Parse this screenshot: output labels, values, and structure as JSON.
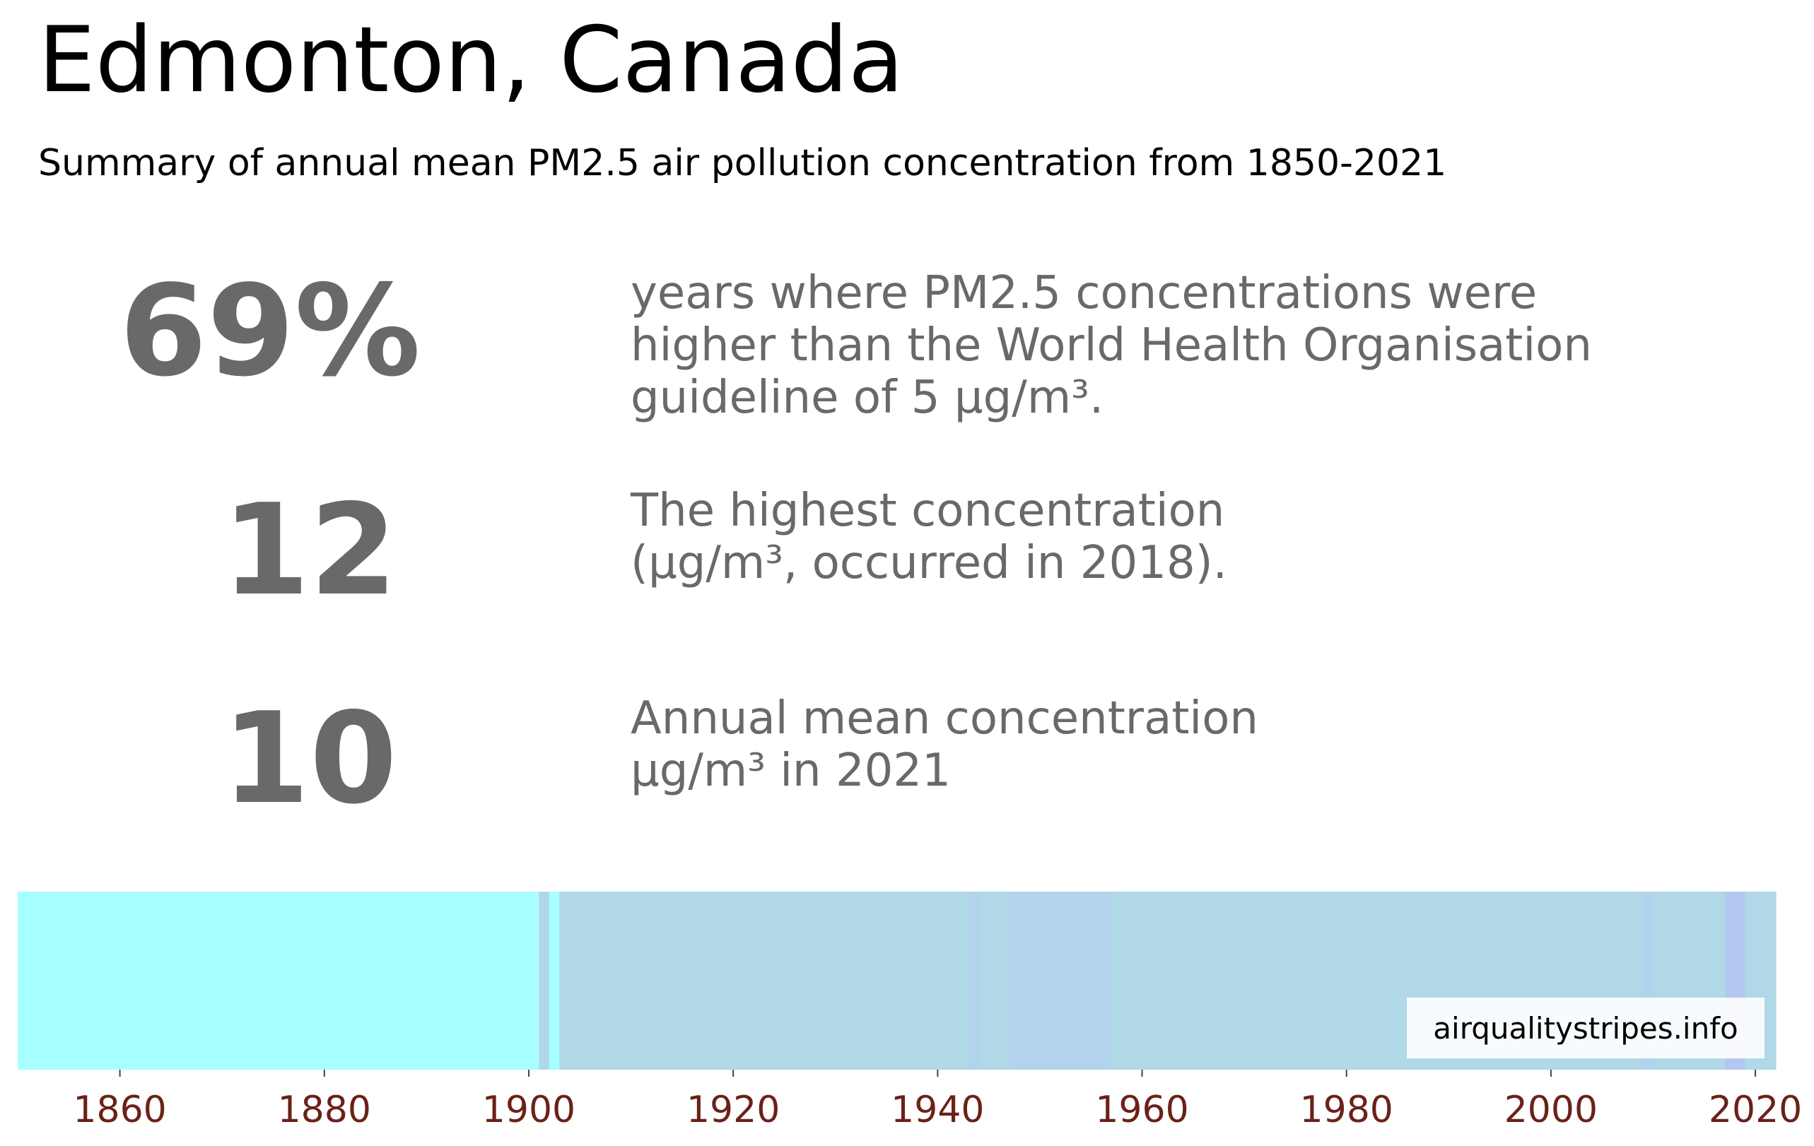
{
  "header": {
    "title": "Edmonton, Canada",
    "subtitle": "Summary of annual mean PM2.5 air pollution concentration from 1850-2021"
  },
  "stats": [
    {
      "value": "69%",
      "lines": [
        "years where PM2.5 concentrations were",
        "higher than the World Health Organisation",
        "guideline of 5 µg/m³."
      ]
    },
    {
      "value": "12",
      "lines": [
        "The highest concentration",
        "(µg/m³, occurred in 2018)."
      ]
    },
    {
      "value": "10",
      "lines": [
        "Annual mean concentration",
        "µg/m³ in 2021"
      ]
    }
  ],
  "chart_data": {
    "type": "heatmap",
    "title": "",
    "xlabel": "",
    "ylabel": "",
    "xlim": [
      1850,
      2022
    ],
    "x_ticks": [
      1860,
      1880,
      1900,
      1920,
      1940,
      1960,
      1980,
      2000,
      2020
    ],
    "grid": false,
    "watermark": "airqualitystripes.info",
    "colors": {
      "low": "#a8ffff",
      "mid": "#b0d8e6",
      "high": "#b2d2ed",
      "higher": "#b3c8f0",
      "tick_label": "#6b2118"
    },
    "segments": [
      {
        "start": 1850,
        "end": 1901,
        "color": "#a8ffff"
      },
      {
        "start": 1901,
        "end": 1902,
        "color": "#b0d8e6"
      },
      {
        "start": 1902,
        "end": 1903,
        "color": "#a8ffff"
      },
      {
        "start": 1903,
        "end": 1943,
        "color": "#b0d8e6"
      },
      {
        "start": 1943,
        "end": 1944,
        "color": "#b2d2ed"
      },
      {
        "start": 1944,
        "end": 1947,
        "color": "#b0d8e6"
      },
      {
        "start": 1947,
        "end": 1957,
        "color": "#b2d2ed"
      },
      {
        "start": 1957,
        "end": 2009,
        "color": "#b0d8e6"
      },
      {
        "start": 2009,
        "end": 2010,
        "color": "#b2d2ed"
      },
      {
        "start": 2010,
        "end": 2017,
        "color": "#b0d8e6"
      },
      {
        "start": 2017,
        "end": 2019,
        "color": "#b3c8f0"
      },
      {
        "start": 2019,
        "end": 2022,
        "color": "#b0d8e6"
      }
    ]
  }
}
